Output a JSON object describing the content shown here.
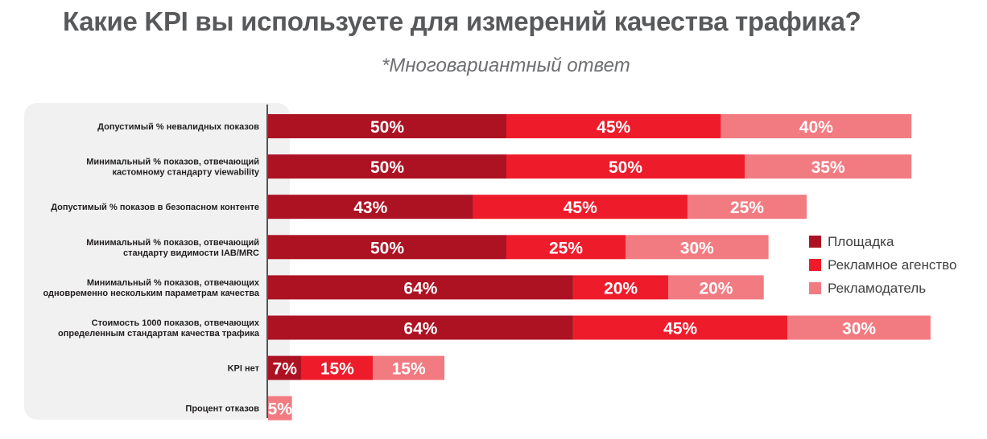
{
  "title": "Какие KPI вы используете для измерений качества трафика?",
  "subtitle": "*Многовариантный ответ",
  "colors": {
    "panel": "#f1f1f2",
    "series": [
      "#ad1223",
      "#ee1c2b",
      "#f27b82"
    ]
  },
  "chart_data": {
    "type": "bar",
    "orientation": "horizontal",
    "stacked": true,
    "title": "Какие KPI вы используете для измерений качества трафика?",
    "subtitle": "*Многовариантный ответ",
    "legend_position": "right",
    "categories": [
      [
        "Допустимый % невалидных показов"
      ],
      [
        "Минимальный % показов, отвечающий",
        "кастомному стандарту viewability"
      ],
      [
        "Допустимый % показов в безопасном контенте"
      ],
      [
        "Минимальный % показов, отвечающий",
        "стандарту видимости IAB/MRC"
      ],
      [
        "Минимальный % показов, отвечающих",
        "одновременно нескольким параметрам качества"
      ],
      [
        "Стоимость 1000 показов, отвечающих",
        "определенным стандартам качества трафика"
      ],
      [
        "KPI нет"
      ],
      [
        "Процент отказов"
      ]
    ],
    "series": [
      {
        "name": "Площадка",
        "values": [
          50,
          50,
          43,
          50,
          64,
          64,
          7,
          null
        ]
      },
      {
        "name": "Рекламное агенство",
        "values": [
          45,
          50,
          45,
          25,
          20,
          45,
          15,
          null
        ]
      },
      {
        "name": "Рекламодатель",
        "values": [
          40,
          35,
          25,
          30,
          20,
          30,
          15,
          5
        ]
      }
    ],
    "value_suffix": "%"
  }
}
